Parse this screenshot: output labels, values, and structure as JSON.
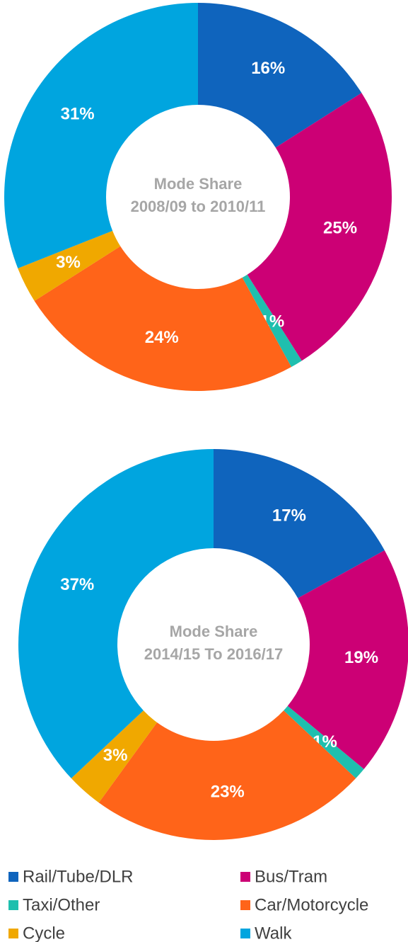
{
  "chart_data": [
    {
      "type": "donut",
      "title": "Mode Share",
      "subtitle": "2008/09 to 2010/11",
      "categories": [
        "Rail/Tube/DLR",
        "Bus/Tram",
        "Taxi/Other",
        "Car/Motorcycle",
        "Cycle",
        "Walk"
      ],
      "values": [
        16,
        25,
        1,
        24,
        3,
        31
      ],
      "value_labels": [
        "16%",
        "25%",
        "1%",
        "24%",
        "3%",
        "31%"
      ],
      "colors": [
        "#0f64bd",
        "#cc0075",
        "#1fbfae",
        "#ff6419",
        "#f0a800",
        "#00a5df"
      ]
    },
    {
      "type": "donut",
      "title": "Mode Share",
      "subtitle": "2014/15 To 2016/17",
      "categories": [
        "Rail/Tube/DLR",
        "Bus/Tram",
        "Taxi/Other",
        "Car/Motorcycle",
        "Cycle",
        "Walk"
      ],
      "values": [
        17,
        19,
        1,
        23,
        3,
        37
      ],
      "value_labels": [
        "17%",
        "19%",
        "1%",
        "23%",
        "3%",
        "37%"
      ],
      "colors": [
        "#0f64bd",
        "#cc0075",
        "#1fbfae",
        "#ff6419",
        "#f0a800",
        "#00a5df"
      ]
    }
  ]
}
